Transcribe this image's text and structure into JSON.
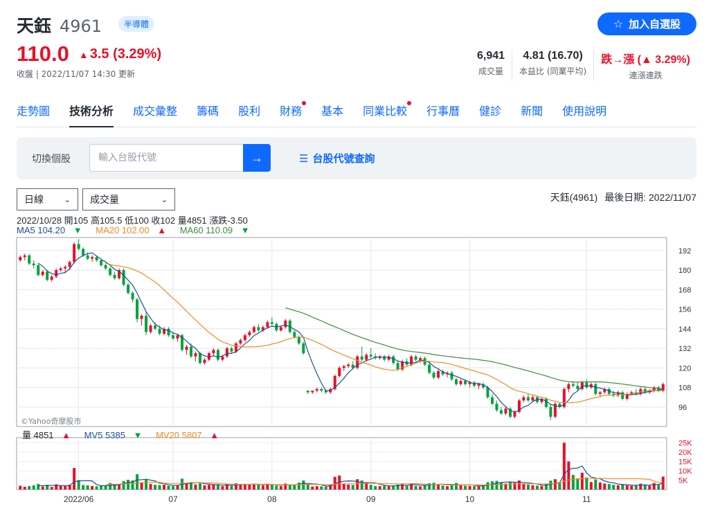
{
  "header": {
    "name": "天鈺",
    "code": "4961",
    "sector": "半導體",
    "follow_label": "加入自選股"
  },
  "quote": {
    "price": "110.0",
    "change": "3.5 (3.29%)",
    "close_time": "收盤 | 2022/11/07 14:30 更新"
  },
  "stats": [
    {
      "value": "6,941",
      "label": "成交量",
      "color": "normal"
    },
    {
      "value": "4.81 (16.70)",
      "label": "本益比 (同業平均)",
      "color": "normal"
    },
    {
      "value": "跌→漲 (▲ 3.29%)",
      "label": "連漲連跌",
      "color": "red"
    }
  ],
  "tabs": [
    {
      "label": "走勢圖"
    },
    {
      "label": "技術分析"
    },
    {
      "label": "成交彙整"
    },
    {
      "label": "籌碼"
    },
    {
      "label": "股利"
    },
    {
      "label": "財務"
    },
    {
      "label": "基本"
    },
    {
      "label": "同業比較"
    },
    {
      "label": "行事曆"
    },
    {
      "label": "健診"
    },
    {
      "label": "新聞"
    },
    {
      "label": "使用說明"
    }
  ],
  "switch": {
    "label": "切換個股",
    "placeholder": "輸入台股代號",
    "lookup_label": "台股代號查詢"
  },
  "controls": {
    "period": "日線",
    "indicator": "成交量"
  },
  "chart_meta": {
    "stock": "天鈺(4961)",
    "last_date": "最後日期: 2022/11/07"
  },
  "ohlc_text": "2022/10/28 開105 高105.5 低100 收102 量4851 漲跌-3.50",
  "ma": {
    "ma5": "MA5 104.20",
    "ma20": "MA20 102.00",
    "ma60": "MA60 110.09"
  },
  "vol": {
    "v": "量 4851",
    "mv5": "MV5 5385",
    "mv20": "MV20 5807"
  },
  "watermark": "©Yahoo奇摩股市",
  "colors": {
    "up": "#eb0f29",
    "down": "#00a33c",
    "ma5": "#1e4e9c",
    "ma20": "#f08a24",
    "ma60": "#3c8c3c",
    "accent": "#0f69ff"
  },
  "chart_data": {
    "type": "candlestick",
    "price_ticks": [
      192,
      180,
      168,
      156,
      144,
      132,
      120,
      108,
      96
    ],
    "volume_ticks": [
      "25K",
      "20K",
      "15K",
      "10K",
      "5K"
    ],
    "x_labels": [
      "2022/06",
      "07",
      "08",
      "09",
      "10",
      "11"
    ],
    "ylim": [
      84,
      200
    ],
    "volume_ylim": [
      0,
      27000
    ],
    "candles": [
      [
        186,
        189,
        185,
        188,
        2000
      ],
      [
        188,
        190,
        186,
        189,
        1500
      ],
      [
        189,
        190,
        183,
        184,
        1800
      ],
      [
        184,
        186,
        181,
        183,
        2200
      ],
      [
        183,
        184,
        176,
        177,
        3000
      ],
      [
        177,
        180,
        176,
        179,
        1600
      ],
      [
        179,
        180,
        173,
        174,
        2500
      ],
      [
        174,
        177,
        173,
        176,
        1400
      ],
      [
        176,
        181,
        175,
        180,
        2800
      ],
      [
        180,
        182,
        179,
        181,
        2000
      ],
      [
        181,
        183,
        178,
        182,
        1900
      ],
      [
        182,
        186,
        180,
        185,
        2600
      ],
      [
        185,
        197,
        184,
        196,
        11500
      ],
      [
        196,
        199,
        192,
        193,
        5000
      ],
      [
        193,
        194,
        188,
        189,
        2400
      ],
      [
        189,
        191,
        186,
        187,
        2200
      ],
      [
        187,
        189,
        185,
        188,
        1900
      ],
      [
        188,
        189,
        185,
        186,
        1700
      ],
      [
        186,
        187,
        182,
        183,
        2100
      ],
      [
        183,
        184,
        180,
        181,
        2000
      ],
      [
        181,
        182,
        176,
        177,
        3500
      ],
      [
        177,
        179,
        174,
        175,
        2600
      ],
      [
        175,
        181,
        174,
        180,
        2800
      ],
      [
        180,
        181,
        170,
        171,
        4500
      ],
      [
        171,
        172,
        165,
        166,
        5200
      ],
      [
        166,
        167,
        160,
        162,
        4800
      ],
      [
        162,
        163,
        148,
        150,
        8200
      ],
      [
        150,
        153,
        146,
        152,
        3500
      ],
      [
        152,
        154,
        140,
        142,
        5600
      ],
      [
        142,
        147,
        141,
        146,
        3000
      ],
      [
        146,
        148,
        143,
        144,
        2500
      ],
      [
        144,
        146,
        140,
        141,
        2400
      ],
      [
        141,
        145,
        140,
        144,
        2600
      ],
      [
        144,
        145,
        139,
        140,
        2000
      ],
      [
        140,
        142,
        137,
        138,
        1800
      ],
      [
        138,
        141,
        136,
        140,
        2300
      ],
      [
        140,
        141,
        130,
        131,
        5800
      ],
      [
        131,
        134,
        128,
        133,
        3200
      ],
      [
        133,
        135,
        126,
        127,
        4000
      ],
      [
        127,
        130,
        124,
        129,
        2700
      ],
      [
        129,
        130,
        122,
        123,
        3300
      ],
      [
        123,
        126,
        122,
        125,
        2200
      ],
      [
        125,
        130,
        124,
        129,
        2500
      ],
      [
        129,
        132,
        127,
        131,
        2600
      ],
      [
        131,
        132,
        124,
        125,
        2400
      ],
      [
        125,
        128,
        124,
        127,
        1800
      ],
      [
        127,
        133,
        126,
        132,
        2900
      ],
      [
        132,
        133,
        129,
        130,
        2000
      ],
      [
        130,
        136,
        129,
        135,
        3300
      ],
      [
        135,
        138,
        134,
        137,
        2700
      ],
      [
        137,
        141,
        136,
        140,
        2900
      ],
      [
        140,
        143,
        139,
        142,
        2600
      ],
      [
        142,
        146,
        141,
        145,
        3100
      ],
      [
        145,
        147,
        142,
        143,
        2600
      ],
      [
        143,
        146,
        142,
        145,
        2300
      ],
      [
        145,
        149,
        144,
        148,
        3000
      ],
      [
        148,
        151,
        146,
        147,
        2500
      ],
      [
        147,
        148,
        142,
        143,
        2100
      ],
      [
        143,
        146,
        142,
        145,
        1900
      ],
      [
        145,
        150,
        144,
        149,
        3200
      ],
      [
        149,
        150,
        141,
        142,
        2600
      ],
      [
        142,
        143,
        138,
        139,
        2400
      ],
      [
        139,
        140,
        134,
        135,
        3700
      ],
      [
        135,
        136,
        128,
        129,
        4800
      ],
      [
        106,
        106,
        104,
        105,
        2700
      ],
      [
        105,
        106,
        104,
        106,
        1600
      ],
      [
        106,
        108,
        105,
        107,
        1800
      ],
      [
        107,
        108,
        105,
        106,
        1700
      ],
      [
        106,
        107,
        104,
        105,
        1500
      ],
      [
        105,
        108,
        104,
        107,
        2800
      ],
      [
        107,
        116,
        106,
        115,
        6800
      ],
      [
        115,
        121,
        114,
        120,
        7500
      ],
      [
        120,
        122,
        118,
        121,
        3200
      ],
      [
        121,
        123,
        120,
        122,
        2600
      ],
      [
        122,
        124,
        119,
        120,
        2400
      ],
      [
        120,
        128,
        119,
        127,
        5500
      ],
      [
        127,
        133,
        124,
        125,
        4800
      ],
      [
        125,
        129,
        124,
        128,
        3200
      ],
      [
        128,
        132,
        126,
        127,
        2500
      ],
      [
        127,
        129,
        125,
        126,
        1900
      ],
      [
        126,
        128,
        125,
        127,
        1800
      ],
      [
        127,
        128,
        124,
        125,
        2000
      ],
      [
        125,
        128,
        124,
        127,
        1700
      ],
      [
        127,
        128,
        122,
        123,
        2200
      ],
      [
        123,
        124,
        118,
        119,
        2600
      ],
      [
        119,
        125,
        118,
        124,
        2900
      ],
      [
        124,
        126,
        121,
        122,
        2000
      ],
      [
        122,
        128,
        121,
        127,
        3300
      ],
      [
        127,
        128,
        124,
        125,
        1900
      ],
      [
        125,
        127,
        123,
        126,
        1700
      ],
      [
        126,
        127,
        121,
        122,
        2300
      ],
      [
        122,
        123,
        116,
        117,
        3400
      ],
      [
        117,
        118,
        113,
        114,
        3600
      ],
      [
        114,
        119,
        113,
        118,
        2800
      ],
      [
        118,
        119,
        115,
        116,
        2100
      ],
      [
        116,
        118,
        114,
        117,
        1800
      ],
      [
        117,
        118,
        112,
        113,
        2900
      ],
      [
        113,
        114,
        109,
        110,
        3500
      ],
      [
        110,
        113,
        109,
        112,
        2200
      ],
      [
        112,
        113,
        109,
        110,
        2000
      ],
      [
        110,
        112,
        108,
        111,
        1900
      ],
      [
        111,
        112,
        108,
        109,
        1800
      ],
      [
        109,
        111,
        107,
        110,
        1700
      ],
      [
        110,
        111,
        107,
        108,
        2100
      ],
      [
        108,
        109,
        101,
        102,
        3900
      ],
      [
        102,
        104,
        97,
        98,
        4400
      ],
      [
        98,
        100,
        93,
        94,
        4600
      ],
      [
        94,
        96,
        91,
        92,
        3900
      ],
      [
        92,
        96,
        91,
        95,
        3200
      ],
      [
        95,
        96,
        89,
        90,
        4200
      ],
      [
        90,
        94,
        89,
        93,
        3600
      ],
      [
        93,
        101,
        92,
        100,
        4800
      ],
      [
        100,
        103,
        99,
        102,
        3000
      ],
      [
        102,
        104,
        99,
        100,
        2600
      ],
      [
        100,
        103,
        99,
        102,
        2300
      ],
      [
        102,
        103,
        98,
        99,
        2100
      ],
      [
        99,
        102,
        98,
        101,
        1900
      ],
      [
        101,
        102,
        95,
        96,
        2800
      ],
      [
        96,
        98,
        88,
        90,
        4700
      ],
      [
        90,
        99,
        89,
        98,
        5500
      ],
      [
        98,
        99,
        95,
        96,
        3300
      ],
      [
        96,
        108,
        95,
        107,
        25000
      ],
      [
        107,
        111,
        105,
        110,
        15000
      ],
      [
        110,
        112,
        108,
        109,
        7800
      ],
      [
        109,
        111,
        106,
        107,
        6000
      ],
      [
        107,
        112,
        106,
        111,
        9000
      ],
      [
        111,
        113,
        107,
        108,
        6400
      ],
      [
        108,
        111,
        107,
        110,
        4000
      ],
      [
        110,
        111,
        103,
        104,
        5400
      ],
      [
        104,
        106,
        102,
        105,
        3800
      ],
      [
        105,
        108,
        104,
        107,
        3200
      ],
      [
        107,
        108,
        103,
        104,
        2900
      ],
      [
        104,
        106,
        102,
        103,
        2500
      ],
      [
        103,
        106,
        102,
        105,
        2300
      ],
      [
        105,
        106,
        100,
        101,
        2800
      ],
      [
        101,
        105,
        100,
        104,
        2200
      ],
      [
        104,
        106,
        103,
        105,
        2000
      ],
      [
        105,
        107,
        103,
        104,
        2100
      ],
      [
        104,
        108,
        103,
        107,
        3100
      ],
      [
        107,
        108,
        104,
        105,
        2600
      ],
      [
        105,
        107,
        104,
        106,
        2000
      ],
      [
        106,
        109,
        105,
        108,
        3500
      ],
      [
        108,
        109,
        105,
        106,
        2500
      ],
      [
        106,
        111,
        105,
        110,
        6900
      ]
    ]
  }
}
